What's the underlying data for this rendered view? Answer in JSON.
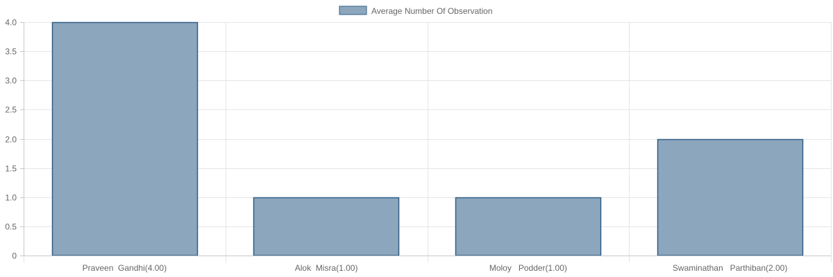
{
  "chart_data": {
    "type": "bar",
    "categories": [
      "Praveen  Gandhi(4.00)",
      "Alok  Misra(1.00)",
      "Moloy   Podder(1.00)",
      "Swaminathan   Parthiban(2.00)"
    ],
    "series": [
      {
        "name": "Average Number Of Observation",
        "values": [
          4,
          1,
          1,
          2
        ]
      }
    ],
    "ylim": [
      0,
      4
    ],
    "yticks": [
      "0",
      "0.5",
      "1.0",
      "1.5",
      "2.0",
      "2.5",
      "3.0",
      "3.5",
      "4.0"
    ],
    "legend": "top-center",
    "grid": true,
    "colors": {
      "bar_fill": "#8ca6bd",
      "bar_stroke": "#2f5d86",
      "grid": "#e5e5e5",
      "axis": "#c8c8c8",
      "text": "#666666"
    }
  }
}
